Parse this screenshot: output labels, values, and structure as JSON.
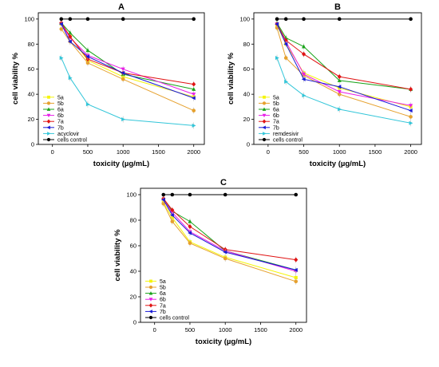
{
  "figure": {
    "colors": {
      "5a": "#f5f50a",
      "5b": "#e6a12e",
      "6a": "#18a318",
      "6b": "#e81ee8",
      "7a": "#e01414",
      "7b": "#1a1ad6",
      "reference": "#33c6d9",
      "cells control": "#000000",
      "axis": "#000000"
    }
  },
  "chart_data": [
    {
      "panel": "A",
      "type": "line",
      "title": "A",
      "xlabel": "toxicity (µg/mL)",
      "ylabel": "cell viability %",
      "xlim": [
        -200,
        2150
      ],
      "ylim": [
        0,
        105
      ],
      "xticks": [
        0,
        500,
        1000,
        1500,
        2000
      ],
      "yticks": [
        0,
        20,
        40,
        60,
        80,
        100
      ],
      "legend_position": "bottom-left",
      "series": [
        {
          "name": "5a",
          "key": "5a",
          "marker": "square",
          "x": [
            125,
            250,
            500,
            1000,
            2000
          ],
          "y": [
            96,
            86,
            67,
            54,
            38
          ]
        },
        {
          "name": "5b",
          "key": "5b",
          "marker": "circle",
          "x": [
            125,
            250,
            500,
            1000,
            2000
          ],
          "y": [
            92,
            82,
            65,
            52,
            27
          ]
        },
        {
          "name": "6a",
          "key": "6a",
          "marker": "triangle-up",
          "x": [
            125,
            250,
            500,
            1000,
            2000
          ],
          "y": [
            97,
            89,
            75,
            56,
            44
          ]
        },
        {
          "name": "6b",
          "key": "6b",
          "marker": "triangle-down",
          "x": [
            125,
            250,
            500,
            1000,
            2000
          ],
          "y": [
            96,
            85,
            71,
            60,
            40
          ]
        },
        {
          "name": "7a",
          "key": "7a",
          "marker": "diamond",
          "x": [
            125,
            250,
            500,
            1000,
            2000
          ],
          "y": [
            97,
            86,
            68,
            57,
            48
          ]
        },
        {
          "name": "7b",
          "key": "7b",
          "marker": "triangle-left",
          "x": [
            125,
            250,
            500,
            1000,
            2000
          ],
          "y": [
            96,
            82,
            70,
            57,
            37
          ]
        },
        {
          "name": "acyclovir",
          "key": "reference",
          "marker": "triangle-right",
          "x": [
            125,
            250,
            500,
            1000,
            2000
          ],
          "y": [
            69,
            53,
            32,
            20,
            15
          ]
        },
        {
          "name": "cells control",
          "key": "cells control",
          "marker": "circle",
          "x": [
            125,
            250,
            500,
            1000,
            2000
          ],
          "y": [
            100,
            100,
            100,
            100,
            100
          ]
        }
      ]
    },
    {
      "panel": "B",
      "type": "line",
      "title": "B",
      "xlabel": "toxicity (µg/mL)",
      "ylabel": "cell viability %",
      "xlim": [
        -200,
        2150
      ],
      "ylim": [
        0,
        105
      ],
      "xticks": [
        0,
        500,
        1000,
        1500,
        2000
      ],
      "yticks": [
        0,
        20,
        40,
        60,
        80,
        100
      ],
      "legend_position": "bottom-left",
      "series": [
        {
          "name": "5a",
          "key": "5a",
          "marker": "square",
          "x": [
            125,
            250,
            500,
            1000,
            2000
          ],
          "y": [
            95,
            80,
            57,
            45,
            30
          ]
        },
        {
          "name": "5b",
          "key": "5b",
          "marker": "circle",
          "x": [
            125,
            250,
            500,
            1000,
            2000
          ],
          "y": [
            93,
            69,
            55,
            40,
            22
          ]
        },
        {
          "name": "6a",
          "key": "6a",
          "marker": "triangle-up",
          "x": [
            125,
            250,
            500,
            1000,
            2000
          ],
          "y": [
            97,
            85,
            78,
            51,
            44
          ]
        },
        {
          "name": "6b",
          "key": "6b",
          "marker": "triangle-down",
          "x": [
            125,
            250,
            500,
            1000,
            2000
          ],
          "y": [
            96,
            82,
            56,
            42,
            31
          ]
        },
        {
          "name": "7a",
          "key": "7a",
          "marker": "diamond",
          "x": [
            125,
            250,
            500,
            1000,
            2000
          ],
          "y": [
            96,
            83,
            72,
            54,
            44
          ]
        },
        {
          "name": "7b",
          "key": "7b",
          "marker": "triangle-left",
          "x": [
            125,
            250,
            500,
            1000,
            2000
          ],
          "y": [
            96,
            80,
            52,
            46,
            27
          ]
        },
        {
          "name": "remdesivir",
          "key": "reference",
          "marker": "triangle-right",
          "x": [
            125,
            250,
            500,
            1000,
            2000
          ],
          "y": [
            69,
            50,
            39,
            28,
            17
          ]
        },
        {
          "name": "cells control",
          "key": "cells control",
          "marker": "circle",
          "x": [
            125,
            250,
            500,
            1000,
            2000
          ],
          "y": [
            100,
            100,
            100,
            100,
            100
          ]
        }
      ]
    },
    {
      "panel": "C",
      "type": "line",
      "title": "C",
      "xlabel": "toxicity (µg/mL)",
      "ylabel": "cell viability %",
      "xlim": [
        -200,
        2150
      ],
      "ylim": [
        0,
        105
      ],
      "xticks": [
        0,
        500,
        1000,
        1500,
        2000
      ],
      "yticks": [
        0,
        20,
        40,
        60,
        80,
        100
      ],
      "legend_position": "bottom-left",
      "series": [
        {
          "name": "5a",
          "key": "5a",
          "marker": "square",
          "x": [
            125,
            250,
            500,
            1000,
            2000
          ],
          "y": [
            94,
            82,
            63,
            51,
            35
          ]
        },
        {
          "name": "5b",
          "key": "5b",
          "marker": "circle",
          "x": [
            125,
            250,
            500,
            1000,
            2000
          ],
          "y": [
            93,
            79,
            62,
            50,
            32
          ]
        },
        {
          "name": "6a",
          "key": "6a",
          "marker": "triangle-up",
          "x": [
            125,
            250,
            500,
            1000,
            2000
          ],
          "y": [
            97,
            87,
            79,
            56,
            41
          ]
        },
        {
          "name": "6b",
          "key": "6b",
          "marker": "triangle-down",
          "x": [
            125,
            250,
            500,
            1000,
            2000
          ],
          "y": [
            96,
            86,
            71,
            56,
            40
          ]
        },
        {
          "name": "7a",
          "key": "7a",
          "marker": "diamond",
          "x": [
            125,
            250,
            500,
            1000,
            2000
          ],
          "y": [
            97,
            88,
            75,
            57,
            49
          ]
        },
        {
          "name": "7b",
          "key": "7b",
          "marker": "triangle-left",
          "x": [
            125,
            250,
            500,
            1000,
            2000
          ],
          "y": [
            96,
            84,
            70,
            55,
            41
          ]
        },
        {
          "name": "cells control",
          "key": "cells control",
          "marker": "circle",
          "x": [
            125,
            250,
            500,
            1000,
            2000
          ],
          "y": [
            100,
            100,
            100,
            100,
            100
          ]
        }
      ]
    }
  ]
}
